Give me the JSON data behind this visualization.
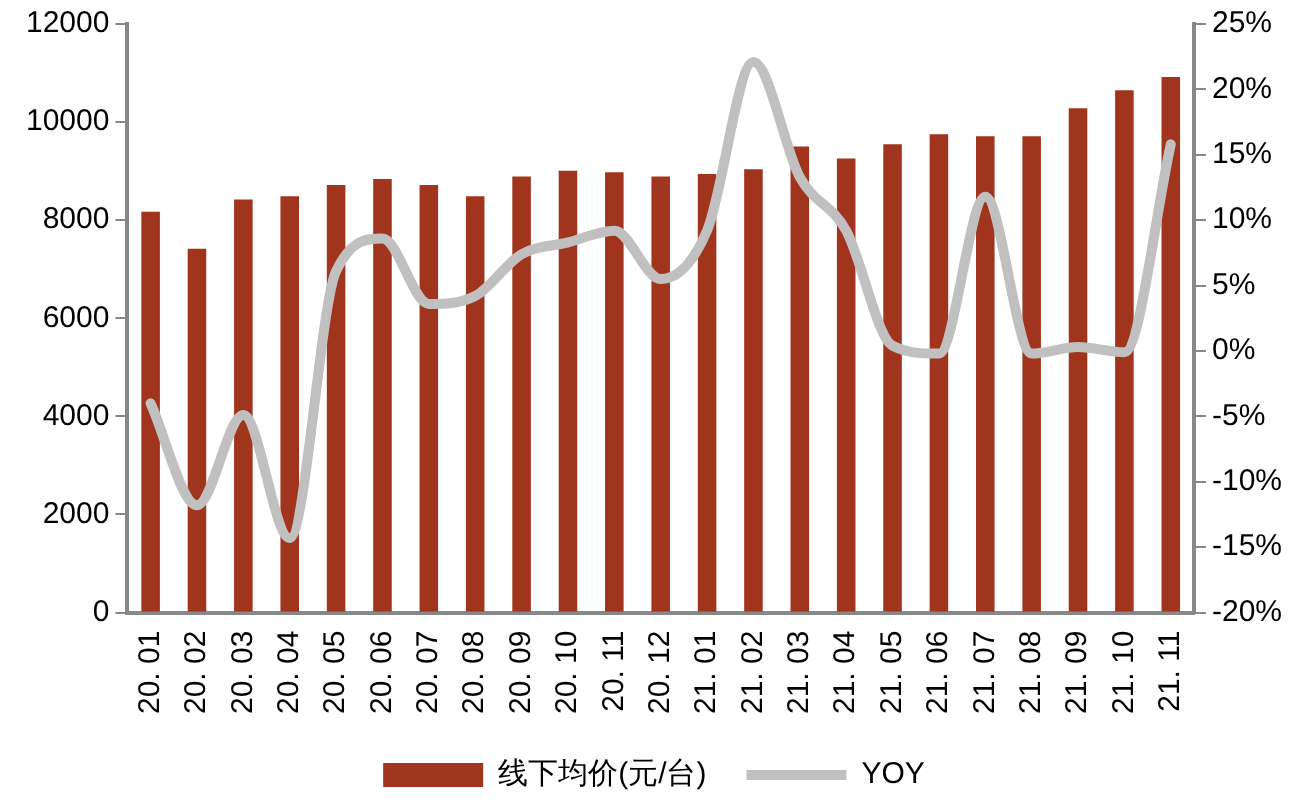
{
  "chart_data": {
    "type": "bar",
    "categories": [
      "20. 01",
      "20. 02",
      "20. 03",
      "20. 04",
      "20. 05",
      "20. 06",
      "20. 07",
      "20. 08",
      "20. 09",
      "20. 10",
      "20. 11",
      "20. 12",
      "21. 01",
      "21. 02",
      "21. 03",
      "21. 04",
      "21. 05",
      "21. 06",
      "21. 07",
      "21. 08",
      "21. 09",
      "21. 10",
      "21. 11"
    ],
    "series": [
      {
        "name": "线下均价(元/台)",
        "color": "#a0341c",
        "values": [
          8170,
          7420,
          8420,
          8490,
          8720,
          8840,
          8720,
          8490,
          8890,
          9010,
          8980,
          8890,
          8940,
          9040,
          9500,
          9260,
          9550,
          9750,
          9710,
          9710,
          10280,
          10650,
          10920
        ]
      },
      {
        "name": "YOY",
        "type": "line",
        "axis": "y2",
        "color": "#c0c0c0",
        "values": [
          -4.0,
          -11.8,
          -4.9,
          -14.3,
          6.1,
          8.6,
          3.6,
          4.2,
          7.4,
          8.3,
          9.2,
          5.5,
          9.2,
          22.1,
          13.3,
          9.2,
          0.4,
          -0.2,
          11.8,
          -0.2,
          0.3,
          -0.1,
          15.8
        ]
      }
    ],
    "ylim": [
      0,
      12000
    ],
    "yticks": [
      0,
      2000,
      4000,
      6000,
      8000,
      10000,
      12000
    ],
    "y2lim": [
      -20,
      25
    ],
    "y2ticks": [
      {
        "value": -20,
        "label": "-20%"
      },
      {
        "value": -15,
        "label": "-15%"
      },
      {
        "value": -10,
        "label": "-10%"
      },
      {
        "value": -5,
        "label": "-5%"
      },
      {
        "value": 0,
        "label": "0%"
      },
      {
        "value": 5,
        "label": "5%"
      },
      {
        "value": 10,
        "label": "10%"
      },
      {
        "value": 15,
        "label": "15%"
      },
      {
        "value": 20,
        "label": "20%"
      },
      {
        "value": 25,
        "label": "25%"
      }
    ],
    "grid": false,
    "legend": "bottom",
    "marker": "none",
    "line_style": "solid"
  }
}
